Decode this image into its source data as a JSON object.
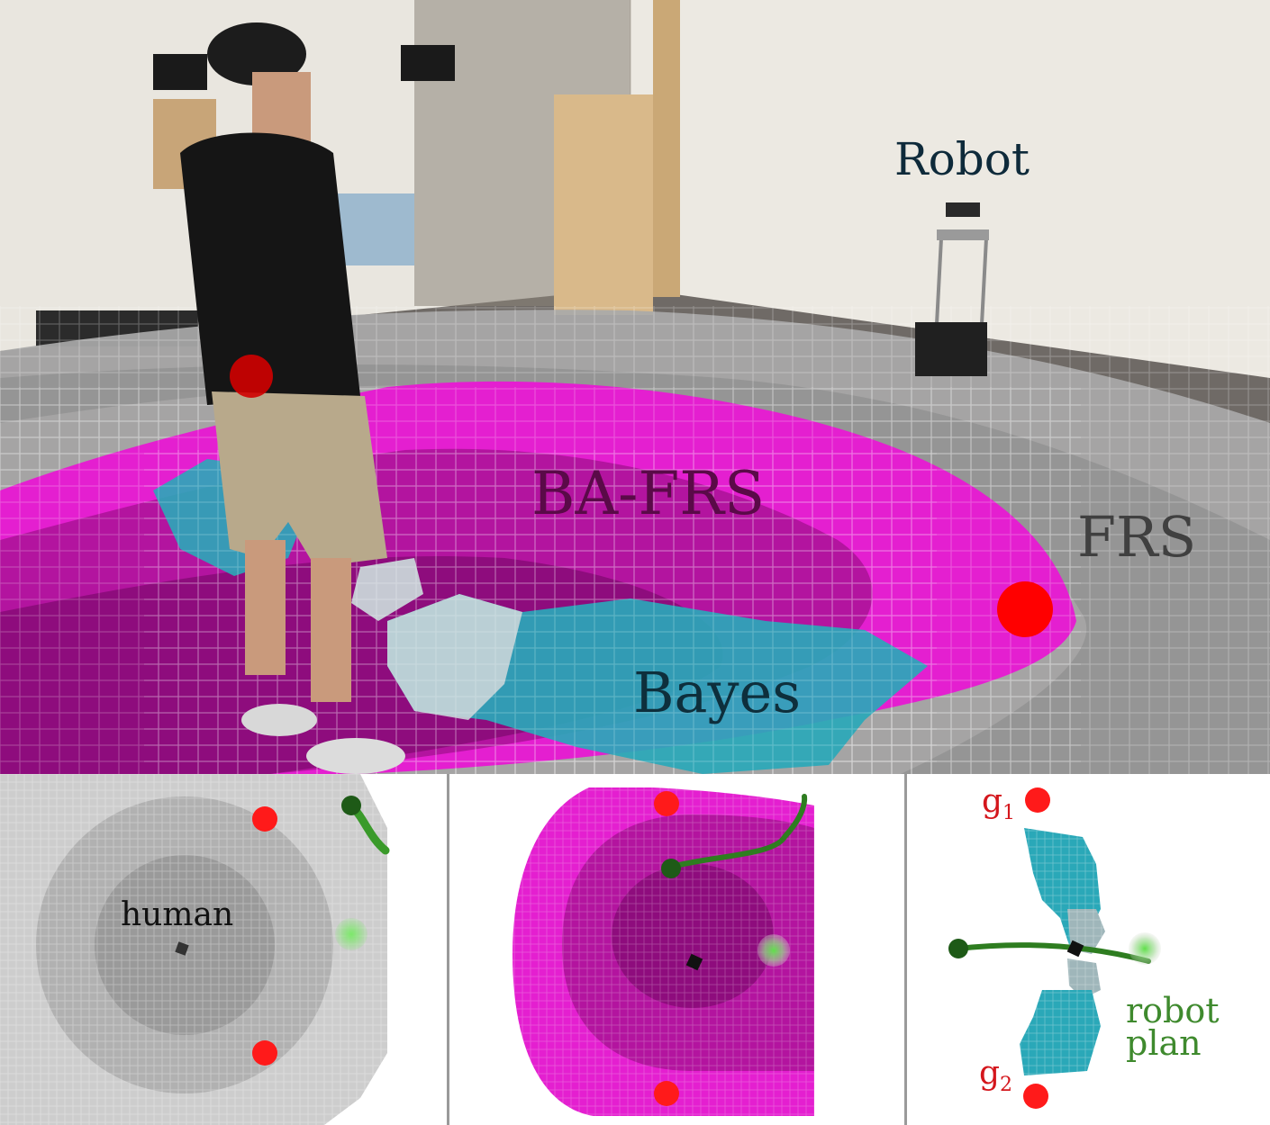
{
  "photo": {
    "labels": {
      "robot": "Robot",
      "ba_frs": "BA-FRS",
      "frs": "FRS",
      "bayes": "Bayes"
    }
  },
  "panels": {
    "frs_panel": {
      "human_label": "human"
    },
    "bayes_panel": {
      "goal1": {
        "letter": "g",
        "index": "1"
      },
      "goal2": {
        "letter": "g",
        "index": "2"
      },
      "plan_line1": "robot",
      "plan_line2": "plan"
    }
  },
  "colors": {
    "magenta": "#e41fd0",
    "dark_magenta": "#9a0d86",
    "teal": "#2aa8b8",
    "gray_frs": "#a9a9a9",
    "goal_red": "#ff1a1a",
    "plan_green": "#2e7d20"
  }
}
